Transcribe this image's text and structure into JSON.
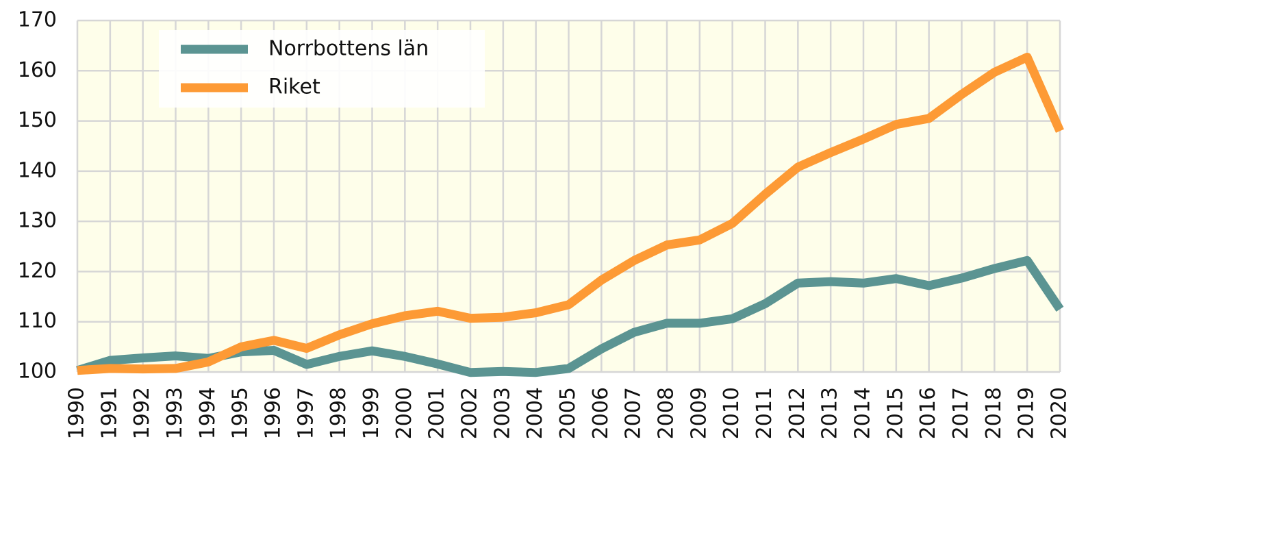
{
  "chart_data": {
    "type": "line",
    "categories": [
      "1990",
      "1991",
      "1992",
      "1993",
      "1994",
      "1995",
      "1996",
      "1997",
      "1998",
      "1999",
      "2000",
      "2001",
      "2002",
      "2003",
      "2004",
      "2005",
      "2006",
      "2007",
      "2008",
      "2009",
      "2010",
      "2011",
      "2012",
      "2013",
      "2014",
      "2015",
      "2016",
      "2017",
      "2018",
      "2019",
      "2020"
    ],
    "series": [
      {
        "name": "Norrbottens län",
        "color": "#5b9492",
        "values": [
          100.3,
          102.3,
          102.8,
          103.2,
          102.7,
          104,
          104.3,
          101.5,
          103.1,
          104.2,
          103.1,
          101.6,
          99.9,
          100.1,
          99.9,
          100.7,
          104.6,
          107.9,
          109.7,
          109.7,
          110.6,
          113.6,
          117.7,
          118,
          117.7,
          118.6,
          117.2,
          118.7,
          120.6,
          122.2,
          112.5
        ]
      },
      {
        "name": "Riket",
        "color": "#fd9a35",
        "values": [
          100.3,
          100.7,
          100.6,
          100.7,
          102,
          105,
          106.3,
          104.7,
          107.4,
          109.6,
          111.2,
          112.1,
          110.7,
          110.9,
          111.8,
          113.4,
          118.3,
          122.2,
          125.3,
          126.3,
          129.6,
          135.4,
          140.8,
          143.7,
          146.4,
          149.3,
          150.5,
          155.3,
          159.7,
          162.7,
          148
        ]
      }
    ],
    "ylim": [
      100,
      170
    ],
    "yticks": [
      100,
      110,
      120,
      130,
      140,
      150,
      160,
      170
    ],
    "grid": true,
    "legend": "upper-left"
  }
}
